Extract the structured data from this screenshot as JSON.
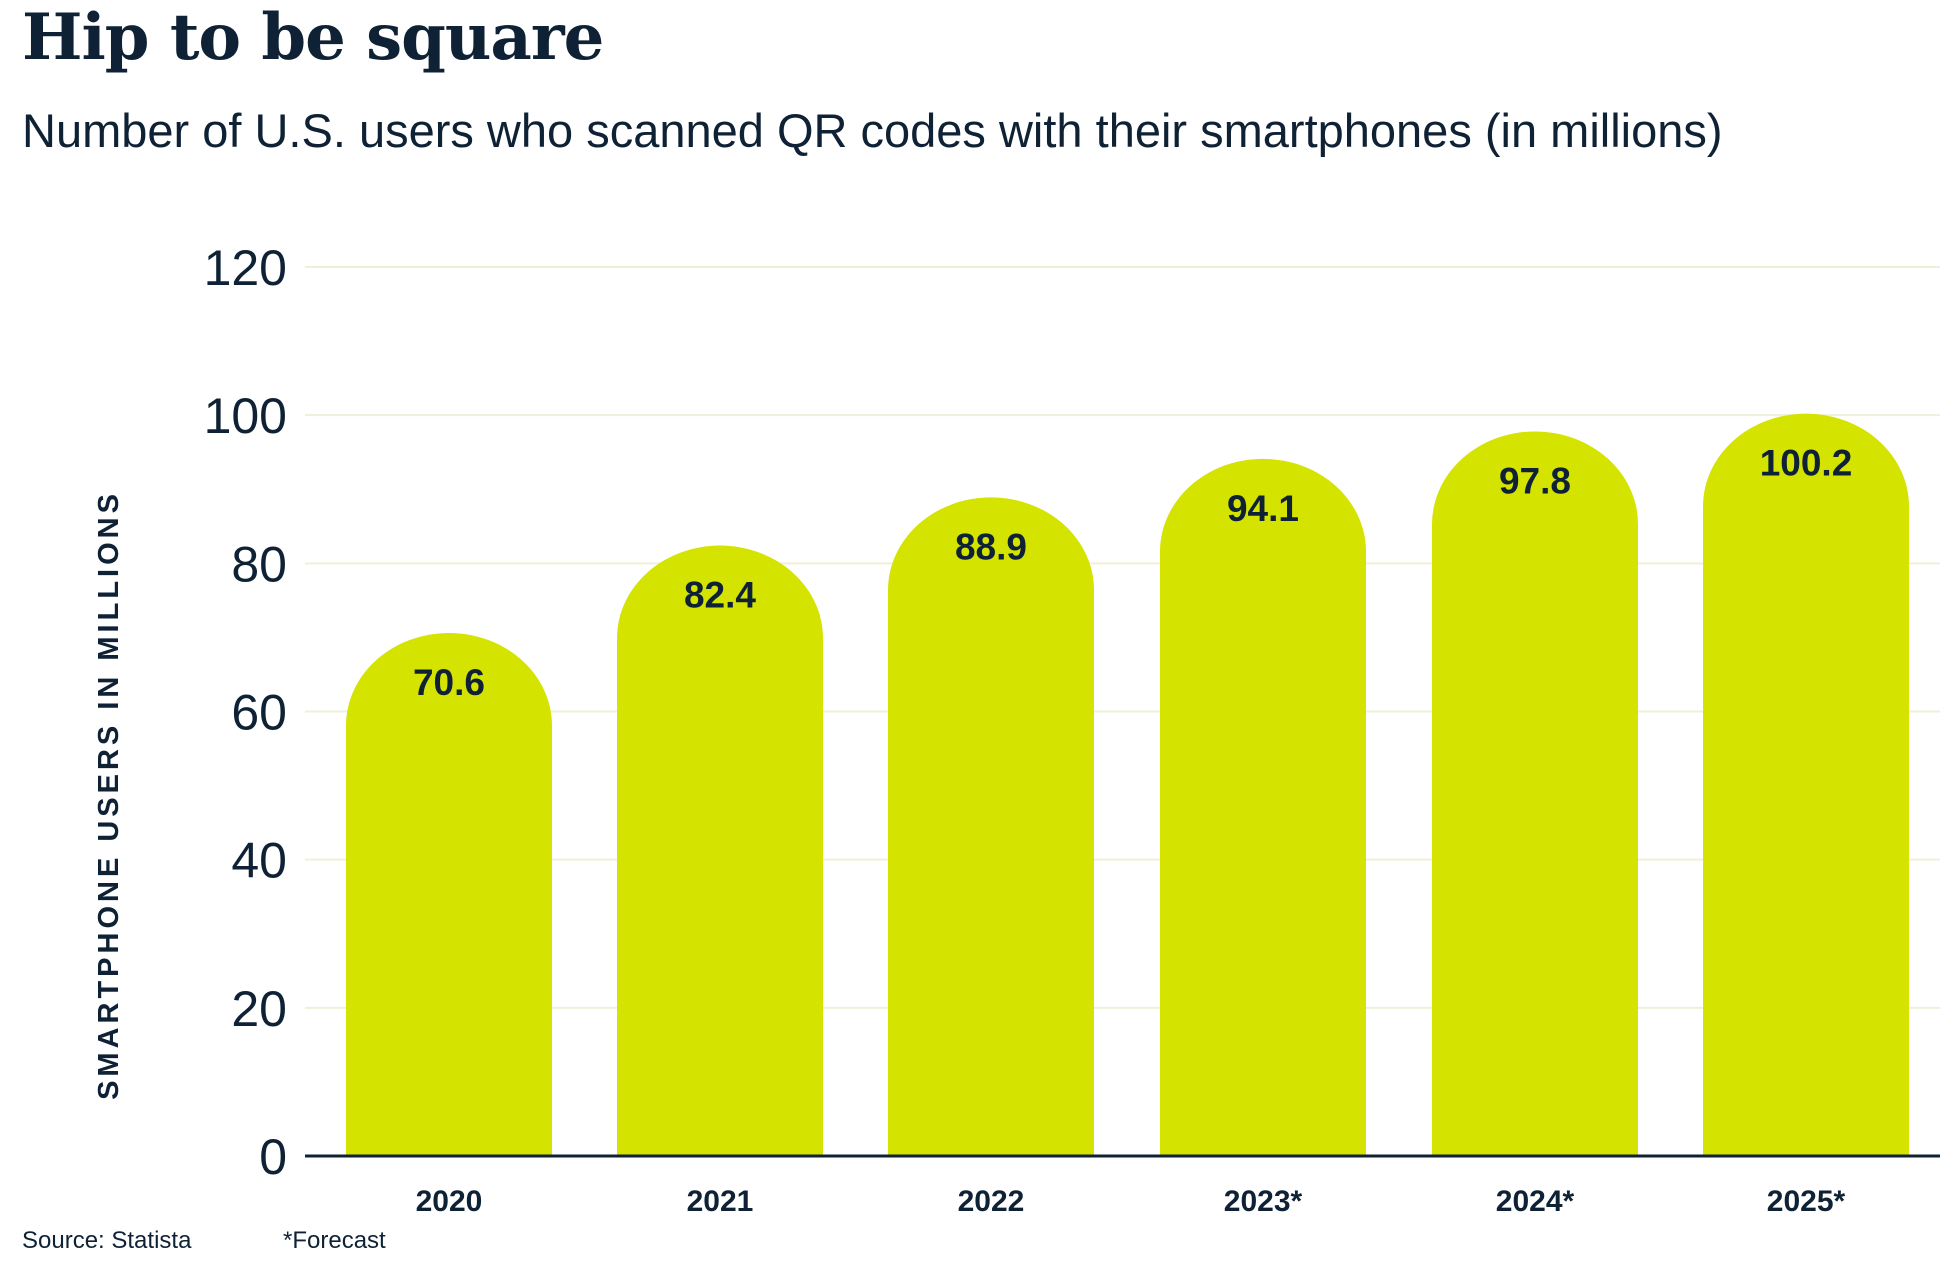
{
  "title": "Hip to be square",
  "subtitle": "Number of U.S. users who scanned QR codes with their smartphones (in millions)",
  "footer": {
    "source": "Source: Statista",
    "note": "*Forecast"
  },
  "colors": {
    "bar": "#d4e300",
    "text": "#0f2235",
    "grid": "#f1efd9",
    "axis": "#0f2235"
  },
  "chart_data": {
    "type": "bar",
    "categories": [
      "2020",
      "2021",
      "2022",
      "2023*",
      "2024*",
      "2025*"
    ],
    "values": [
      70.6,
      82.4,
      88.9,
      94.1,
      97.8,
      100.2
    ],
    "data_labels": [
      "70.6",
      "82.4",
      "88.9",
      "94.1",
      "97.8",
      "100.2"
    ],
    "title": "Hip to be square",
    "subtitle": "Number of U.S. users who scanned QR codes with their smartphones (in millions)",
    "xlabel": "",
    "ylabel": "SMARTPHONE USERS IN MILLIONS",
    "ylim": [
      0,
      120
    ],
    "yticks": [
      0,
      20,
      40,
      60,
      80,
      100,
      120
    ],
    "grid": true,
    "legend": "none"
  }
}
